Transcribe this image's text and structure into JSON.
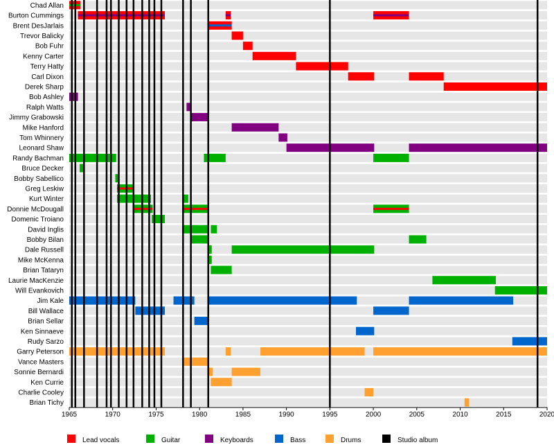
{
  "chart_data": {
    "type": "timeline",
    "title": "",
    "xlabel": "",
    "ylabel": "",
    "xlim": [
      1965,
      2020
    ],
    "x_ticks": [
      "1965",
      "1970",
      "1975",
      "1980",
      "1985",
      "1990",
      "1995",
      "2000",
      "2005",
      "2010",
      "2015",
      "2020"
    ],
    "grid": "alternating row bands",
    "legend_position": "bottom",
    "colors": {
      "Lead vocals": "#ff0000",
      "Guitar": "#00b000",
      "Keyboards": "#800080",
      "Bass": "#0066cc",
      "Drums": "#ffa030",
      "Studio album": "#000000"
    },
    "legend": [
      {
        "role": "Lead vocals",
        "label": "Lead vocals"
      },
      {
        "role": "Guitar",
        "label": "Guitar"
      },
      {
        "role": "Keyboards",
        "label": "Keyboards"
      },
      {
        "role": "Bass",
        "label": "Bass"
      },
      {
        "role": "Drums",
        "label": "Drums"
      },
      {
        "role": "Studio album",
        "label": "Studio album"
      }
    ],
    "albums": [
      1965.3,
      1965.7,
      1966.7,
      1968.2,
      1969.3,
      1969.8,
      1970.7,
      1971.6,
      1972.4,
      1973.4,
      1974.2,
      1974.8,
      1975.6,
      1978.1,
      1979.0,
      1981.0,
      1995.0,
      2018.9
    ],
    "members": [
      {
        "name": "Chad Allan",
        "bars": [
          {
            "role": "Lead vocals",
            "start": 1965.0,
            "end": 1966.3,
            "stripe": "Guitar"
          }
        ]
      },
      {
        "name": "Burton Cummings",
        "bars": [
          {
            "role": "Lead vocals",
            "start": 1966.0,
            "end": 1976.0,
            "stripe": "Keyboards"
          },
          {
            "role": "Lead vocals",
            "start": 1983.0,
            "end": 1983.6,
            "stripe": "Keyboards"
          },
          {
            "role": "Lead vocals",
            "start": 2000.0,
            "end": 2004.1,
            "stripe": "Keyboards"
          }
        ]
      },
      {
        "name": "Brent DesJarlais",
        "bars": [
          {
            "role": "Lead vocals",
            "start": 1981.0,
            "end": 1983.7,
            "stripe": "Bass"
          }
        ]
      },
      {
        "name": "Trevor Balicky",
        "bars": [
          {
            "role": "Lead vocals",
            "start": 1983.7,
            "end": 1985.0
          }
        ]
      },
      {
        "name": "Bob Fuhr",
        "bars": [
          {
            "role": "Lead vocals",
            "start": 1985.0,
            "end": 1986.1
          }
        ]
      },
      {
        "name": "Kenny Carter",
        "bars": [
          {
            "role": "Lead vocals",
            "start": 1986.1,
            "end": 1991.1
          }
        ]
      },
      {
        "name": "Terry Hatty",
        "bars": [
          {
            "role": "Lead vocals",
            "start": 1991.1,
            "end": 1997.1
          }
        ]
      },
      {
        "name": "Carl Dixon",
        "bars": [
          {
            "role": "Lead vocals",
            "start": 1997.1,
            "end": 2000.1
          },
          {
            "role": "Lead vocals",
            "start": 2004.1,
            "end": 2008.1
          }
        ]
      },
      {
        "name": "Derek Sharp",
        "bars": [
          {
            "role": "Lead vocals",
            "start": 2008.1,
            "end": 2020.0
          }
        ]
      },
      {
        "name": "Bob Ashley",
        "bars": [
          {
            "role": "Keyboards",
            "start": 1965.0,
            "end": 1966.0
          }
        ]
      },
      {
        "name": "Ralph Watts",
        "bars": [
          {
            "role": "Keyboards",
            "start": 1978.5,
            "end": 1979.0
          }
        ]
      },
      {
        "name": "Jimmy Grabowski",
        "bars": [
          {
            "role": "Keyboards",
            "start": 1979.0,
            "end": 1981.0
          }
        ]
      },
      {
        "name": "Mike Hanford",
        "bars": [
          {
            "role": "Keyboards",
            "start": 1983.7,
            "end": 1989.1
          }
        ]
      },
      {
        "name": "Tom Whinnery",
        "bars": [
          {
            "role": "Keyboards",
            "start": 1989.1,
            "end": 1990.1
          }
        ]
      },
      {
        "name": "Leonard Shaw",
        "bars": [
          {
            "role": "Keyboards",
            "start": 1990.0,
            "end": 2000.1
          },
          {
            "role": "Keyboards",
            "start": 2004.1,
            "end": 2020.0
          }
        ]
      },
      {
        "name": "Randy Bachman",
        "bars": [
          {
            "role": "Guitar",
            "start": 1965.0,
            "end": 1970.4
          },
          {
            "role": "Guitar",
            "start": 1980.5,
            "end": 1983.0
          },
          {
            "role": "Guitar",
            "start": 2000.0,
            "end": 2004.1
          }
        ]
      },
      {
        "name": "Bruce Decker",
        "bars": [
          {
            "role": "Guitar",
            "start": 1966.2,
            "end": 1966.6
          }
        ]
      },
      {
        "name": "Bobby Sabellico",
        "bars": [
          {
            "role": "Guitar",
            "start": 1970.3,
            "end": 1970.6
          }
        ]
      },
      {
        "name": "Greg Leskiw",
        "bars": [
          {
            "role": "Guitar",
            "start": 1970.5,
            "end": 1972.3,
            "stripe": "Lead vocals"
          }
        ]
      },
      {
        "name": "Kurt Winter",
        "bars": [
          {
            "role": "Guitar",
            "start": 1970.5,
            "end": 1974.4
          },
          {
            "role": "Guitar",
            "start": 1978.0,
            "end": 1978.7
          }
        ]
      },
      {
        "name": "Donnie McDougall",
        "bars": [
          {
            "role": "Guitar",
            "start": 1972.3,
            "end": 1974.6,
            "stripe": "Lead vocals"
          },
          {
            "role": "Guitar",
            "start": 1978.0,
            "end": 1981.0,
            "stripe": "Lead vocals"
          },
          {
            "role": "Guitar",
            "start": 2000.0,
            "end": 2004.1,
            "stripe": "Lead vocals"
          }
        ]
      },
      {
        "name": "Domenic Troiano",
        "bars": [
          {
            "role": "Guitar",
            "start": 1974.5,
            "end": 1976.0
          }
        ]
      },
      {
        "name": "David Inglis",
        "bars": [
          {
            "role": "Guitar",
            "start": 1978.0,
            "end": 1981.0
          },
          {
            "role": "Guitar",
            "start": 1981.3,
            "end": 1982.0
          }
        ]
      },
      {
        "name": "Bobby Bilan",
        "bars": [
          {
            "role": "Guitar",
            "start": 1979.0,
            "end": 1981.0
          },
          {
            "role": "Guitar",
            "start": 2004.1,
            "end": 2006.1
          }
        ]
      },
      {
        "name": "Dale Russell",
        "bars": [
          {
            "role": "Guitar",
            "start": 1981.0,
            "end": 1981.4
          },
          {
            "role": "Guitar",
            "start": 1983.7,
            "end": 2000.1
          }
        ]
      },
      {
        "name": "Mike McKenna",
        "bars": [
          {
            "role": "Guitar",
            "start": 1981.0,
            "end": 1981.4
          }
        ]
      },
      {
        "name": "Brian Tataryn",
        "bars": [
          {
            "role": "Guitar",
            "start": 1981.3,
            "end": 1983.7
          }
        ]
      },
      {
        "name": "Laurie MacKenzie",
        "bars": [
          {
            "role": "Guitar",
            "start": 2006.8,
            "end": 2014.1
          }
        ]
      },
      {
        "name": "Will Evankovich",
        "bars": [
          {
            "role": "Guitar",
            "start": 2014.0,
            "end": 2020.0
          }
        ]
      },
      {
        "name": "Jim Kale",
        "bars": [
          {
            "role": "Bass",
            "start": 1965.0,
            "end": 1972.6
          },
          {
            "role": "Bass",
            "start": 1977.0,
            "end": 1979.4
          },
          {
            "role": "Bass",
            "start": 1981.0,
            "end": 1998.1
          },
          {
            "role": "Bass",
            "start": 2004.1,
            "end": 2016.1
          }
        ]
      },
      {
        "name": "Bill Wallace",
        "bars": [
          {
            "role": "Bass",
            "start": 1972.6,
            "end": 1976.0
          },
          {
            "role": "Bass",
            "start": 2000.0,
            "end": 2004.1
          }
        ]
      },
      {
        "name": "Brian Sellar",
        "bars": [
          {
            "role": "Bass",
            "start": 1979.4,
            "end": 1981.0
          }
        ]
      },
      {
        "name": "Ken Sinnaeve",
        "bars": [
          {
            "role": "Bass",
            "start": 1998.0,
            "end": 2000.1
          }
        ]
      },
      {
        "name": "Rudy Sarzo",
        "bars": [
          {
            "role": "Bass",
            "start": 2016.0,
            "end": 2020.0
          }
        ]
      },
      {
        "name": "Garry Peterson",
        "bars": [
          {
            "role": "Drums",
            "start": 1965.0,
            "end": 1976.0
          },
          {
            "role": "Drums",
            "start": 1983.0,
            "end": 1983.6
          },
          {
            "role": "Drums",
            "start": 1987.0,
            "end": 1999.0
          },
          {
            "role": "Drums",
            "start": 2000.0,
            "end": 2020.0
          }
        ]
      },
      {
        "name": "Vance Masters",
        "bars": [
          {
            "role": "Drums",
            "start": 1978.0,
            "end": 1981.0
          }
        ]
      },
      {
        "name": "Sonnie Bernardi",
        "bars": [
          {
            "role": "Drums",
            "start": 1981.0,
            "end": 1981.5
          },
          {
            "role": "Drums",
            "start": 1983.7,
            "end": 1987.0
          }
        ]
      },
      {
        "name": "Ken Currie",
        "bars": [
          {
            "role": "Drums",
            "start": 1981.3,
            "end": 1983.7
          }
        ]
      },
      {
        "name": "Charlie Cooley",
        "bars": [
          {
            "role": "Drums",
            "start": 1999.0,
            "end": 2000.0
          }
        ]
      },
      {
        "name": "Brian Tichy",
        "bars": [
          {
            "role": "Drums",
            "start": 2010.5,
            "end": 2011.0
          }
        ]
      }
    ]
  }
}
